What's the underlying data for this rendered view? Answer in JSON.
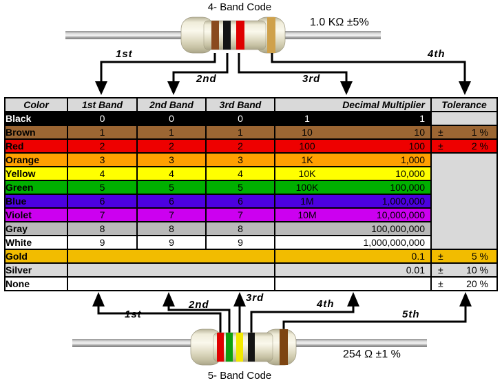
{
  "top_resistor": {
    "title": "4- Band Code",
    "value_label": "1.0 KΩ  ±5%",
    "band_names": [
      "brown",
      "black",
      "red",
      "gold"
    ],
    "band_colors": [
      "#8a4a1e",
      "#141414",
      "#df0000",
      "#cfa14b"
    ],
    "arrow_labels": [
      "1st",
      "2nd",
      "3rd",
      "4th"
    ]
  },
  "bottom_resistor": {
    "title": "5- Band Code",
    "value_label": "254 Ω  ±1 %",
    "band_names": [
      "red",
      "green",
      "yellow",
      "black",
      "brown"
    ],
    "band_colors": [
      "#df0000",
      "#0f9f0f",
      "#f2e800",
      "#141414",
      "#7d4512"
    ],
    "arrow_labels": [
      "1st",
      "2nd",
      "3rd",
      "4th",
      "5th"
    ]
  },
  "table": {
    "headers": [
      "Color",
      "1st Band",
      "2nd Band",
      "3rd Band",
      "Decimal Multiplier",
      "Tolerance"
    ],
    "rows": [
      {
        "name": "Black",
        "bg": "#000000",
        "fg": "#ffffff",
        "b1": "0",
        "b2": "0",
        "b3": "0",
        "ms": "1",
        "mv": "1",
        "tol": {
          "type": "cell",
          "sign": "",
          "value": "",
          "bg": "#d9d9d9",
          "fg": "#000000"
        }
      },
      {
        "name": "Brown",
        "bg": "#9c6633",
        "fg": "#000000",
        "b1": "1",
        "b2": "1",
        "b3": "1",
        "ms": "10",
        "mv": "10",
        "tol": {
          "type": "cell",
          "sign": "±",
          "value": "1 %",
          "bg": "#9c6633",
          "fg": "#000000"
        }
      },
      {
        "name": "Red",
        "bg": "#ee0000",
        "fg": "#000000",
        "b1": "2",
        "b2": "2",
        "b3": "2",
        "ms": "100",
        "mv": "100",
        "tol": {
          "type": "cell",
          "sign": "±",
          "value": "2 %",
          "bg": "#ee0000",
          "fg": "#000000"
        }
      },
      {
        "name": "Orange",
        "bg": "#ffa000",
        "fg": "#000000",
        "b1": "3",
        "b2": "3",
        "b3": "3",
        "ms": "1K",
        "mv": "1,000",
        "tol": {
          "type": "span",
          "rows": 7,
          "bg": "#d9d9d9"
        }
      },
      {
        "name": "Yellow",
        "bg": "#ffff00",
        "fg": "#000000",
        "b1": "4",
        "b2": "4",
        "b3": "4",
        "ms": "10K",
        "mv": "10,000",
        "tol": {
          "type": "none"
        }
      },
      {
        "name": "Green",
        "bg": "#00b000",
        "fg": "#000000",
        "b1": "5",
        "b2": "5",
        "b3": "5",
        "ms": "100K",
        "mv": "100,000",
        "tol": {
          "type": "none"
        }
      },
      {
        "name": "Blue",
        "bg": "#4c00e0",
        "fg": "#000000",
        "b1": "6",
        "b2": "6",
        "b3": "6",
        "ms": "1M",
        "mv": "1,000,000",
        "tol": {
          "type": "none"
        }
      },
      {
        "name": "Violet",
        "bg": "#cc00f0",
        "fg": "#000000",
        "b1": "7",
        "b2": "7",
        "b3": "7",
        "ms": "10M",
        "mv": "10,000,000",
        "tol": {
          "type": "none"
        }
      },
      {
        "name": "Gray",
        "bg": "#b9b9b9",
        "fg": "#000000",
        "b1": "8",
        "b2": "8",
        "b3": "8",
        "ms": "",
        "mv": "100,000,000",
        "tol": {
          "type": "none"
        }
      },
      {
        "name": "White",
        "bg": "#ffffff",
        "fg": "#000000",
        "b1": "9",
        "b2": "9",
        "b3": "9",
        "ms": "",
        "mv": "1,000,000,000",
        "tol": {
          "type": "none"
        }
      },
      {
        "name": "Gold",
        "bg": "#f2bc00",
        "fg": "#000000",
        "merged": true,
        "ms": "",
        "mv": "0.1",
        "tol": {
          "type": "cell",
          "sign": "±",
          "value": "5 %",
          "bg": "#f2bc00",
          "fg": "#000000"
        }
      },
      {
        "name": "Silver",
        "bg": "#d9d9d9",
        "fg": "#000000",
        "merged": true,
        "ms": "",
        "mv": "0.01",
        "tol": {
          "type": "cell",
          "sign": "±",
          "value": "10 %",
          "bg": "#d9d9d9",
          "fg": "#000000"
        }
      },
      {
        "name": "None",
        "bg": "#ffffff",
        "fg": "#000000",
        "merged": true,
        "ms": "",
        "mv": "",
        "tol": {
          "type": "cell",
          "sign": "±",
          "value": "20 %",
          "bg": "#ffffff",
          "fg": "#000000"
        }
      }
    ]
  },
  "colors": {
    "body_beige": "#efecd9",
    "wire_gray": "#a8a8a8",
    "table_header_bg": "#d9d9d9",
    "border": "#000000"
  }
}
